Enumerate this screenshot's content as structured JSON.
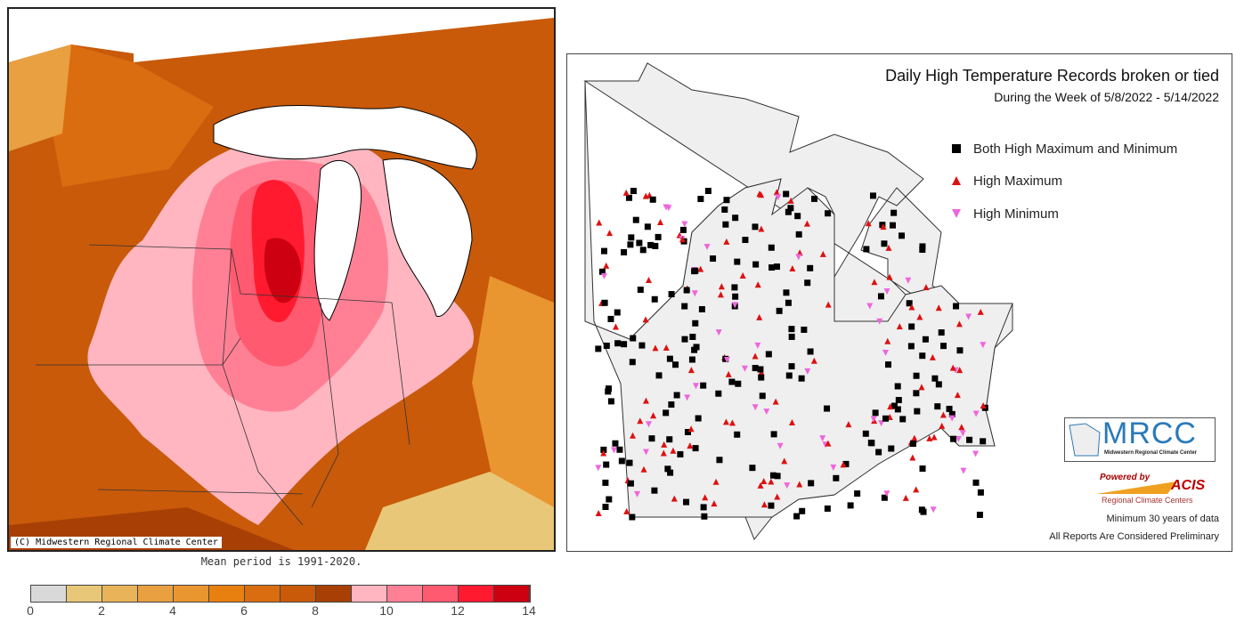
{
  "left_map": {
    "copyright": "(C) Midwestern Regional Climate Center",
    "mean_period": "Mean period is 1991-2020.",
    "legend": {
      "colors": [
        "#d9d9d9",
        "#e8c878",
        "#e9b35a",
        "#e9a040",
        "#e99530",
        "#e88010",
        "#d96d10",
        "#c85a0a",
        "#a84005",
        "#ffb6c1",
        "#ff8095",
        "#ff5a70",
        "#ff1a30",
        "#cc0010"
      ],
      "ticks": [
        "0",
        "2",
        "4",
        "6",
        "8",
        "10",
        "12",
        "14"
      ]
    }
  },
  "right_map": {
    "title": "Daily High Temperature Records broken or tied",
    "subtitle": "During the Week of 5/8/2022 - 5/14/2022",
    "legend": [
      {
        "label": "Both High Maximum and Minimum",
        "symbol": "square",
        "color": "#000000"
      },
      {
        "label": "High Maximum",
        "symbol": "triangle-up",
        "color": "#dd1111"
      },
      {
        "label": "High Minimum",
        "symbol": "triangle-down",
        "color": "#ee66dd"
      }
    ],
    "logo_mrcc": "MRCC",
    "logo_mrcc_sub": "Midwestern Regional Climate Center",
    "logo_acis_powered": "Powered by",
    "logo_acis": "ACIS",
    "logo_acis_sub": "Regional Climate Centers",
    "note1": "Minimum 30 years of data",
    "note2": "All Reports Are Considered Preliminary"
  }
}
